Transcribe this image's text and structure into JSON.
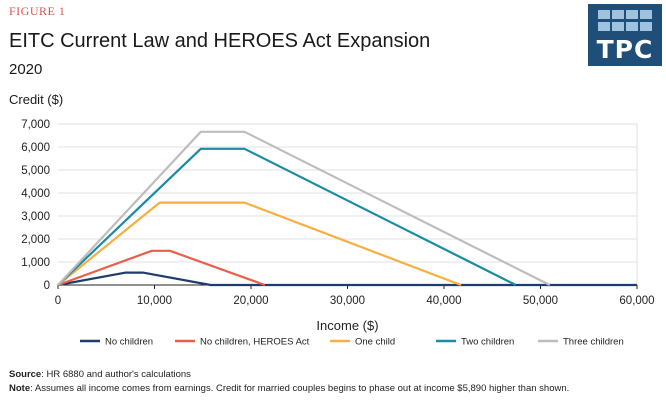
{
  "header": {
    "figure_label": "FIGURE 1",
    "title": "EITC Current Law and HEROES Act Expansion",
    "subtitle": "2020",
    "y_axis_title": "Credit ($)"
  },
  "logo": {
    "text": "TPC",
    "color": "#1f4e79",
    "accent": "#9fc3de"
  },
  "footer": {
    "source_label": "Source",
    "source_text": ": HR 6880 and author's calculations",
    "note_label": "Note",
    "note_text": ": Assumes all income comes from earnings. Credit for married couples begins to phase out at income $5,890 higher than shown."
  },
  "chart_data": {
    "type": "line",
    "title": "EITC Current Law and HEROES Act Expansion",
    "subtitle": "2020",
    "xlabel": "Income ($)",
    "ylabel": "Credit ($)",
    "xlim": [
      0,
      60000
    ],
    "ylim": [
      0,
      7000
    ],
    "x_ticks": [
      0,
      10000,
      20000,
      30000,
      40000,
      50000,
      60000
    ],
    "x_tick_labels": [
      "0",
      "10,000",
      "20,000",
      "30,000",
      "40,000",
      "50,000",
      "60,000"
    ],
    "y_ticks": [
      0,
      1000,
      2000,
      3000,
      4000,
      5000,
      6000,
      7000
    ],
    "y_tick_labels": [
      "0",
      "1,000",
      "2,000",
      "3,000",
      "4,000",
      "5,000",
      "6,000",
      "7,000"
    ],
    "grid": true,
    "legend_position": "bottom",
    "series": [
      {
        "name": "No children",
        "color": "#1f3d6b",
        "x": [
          0,
          7030,
          8790,
          15820,
          57000,
          60000
        ],
        "y": [
          0,
          538,
          538,
          0,
          0,
          0
        ]
      },
      {
        "name": "No children, HEROES Act",
        "color": "#e8604c",
        "x": [
          0,
          9720,
          11610,
          21430
        ],
        "y": [
          0,
          1487,
          1487,
          0
        ]
      },
      {
        "name": "One child",
        "color": "#f5b041",
        "x": [
          0,
          10540,
          19330,
          41760
        ],
        "y": [
          0,
          3584,
          3584,
          0
        ]
      },
      {
        "name": "Two children",
        "color": "#1b8aa6",
        "x": [
          0,
          14800,
          19330,
          47440
        ],
        "y": [
          0,
          5920,
          5920,
          0
        ]
      },
      {
        "name": "Three children",
        "color": "#bdbdbd",
        "x": [
          0,
          14800,
          19330,
          50950
        ],
        "y": [
          0,
          6660,
          6660,
          0
        ]
      }
    ]
  }
}
